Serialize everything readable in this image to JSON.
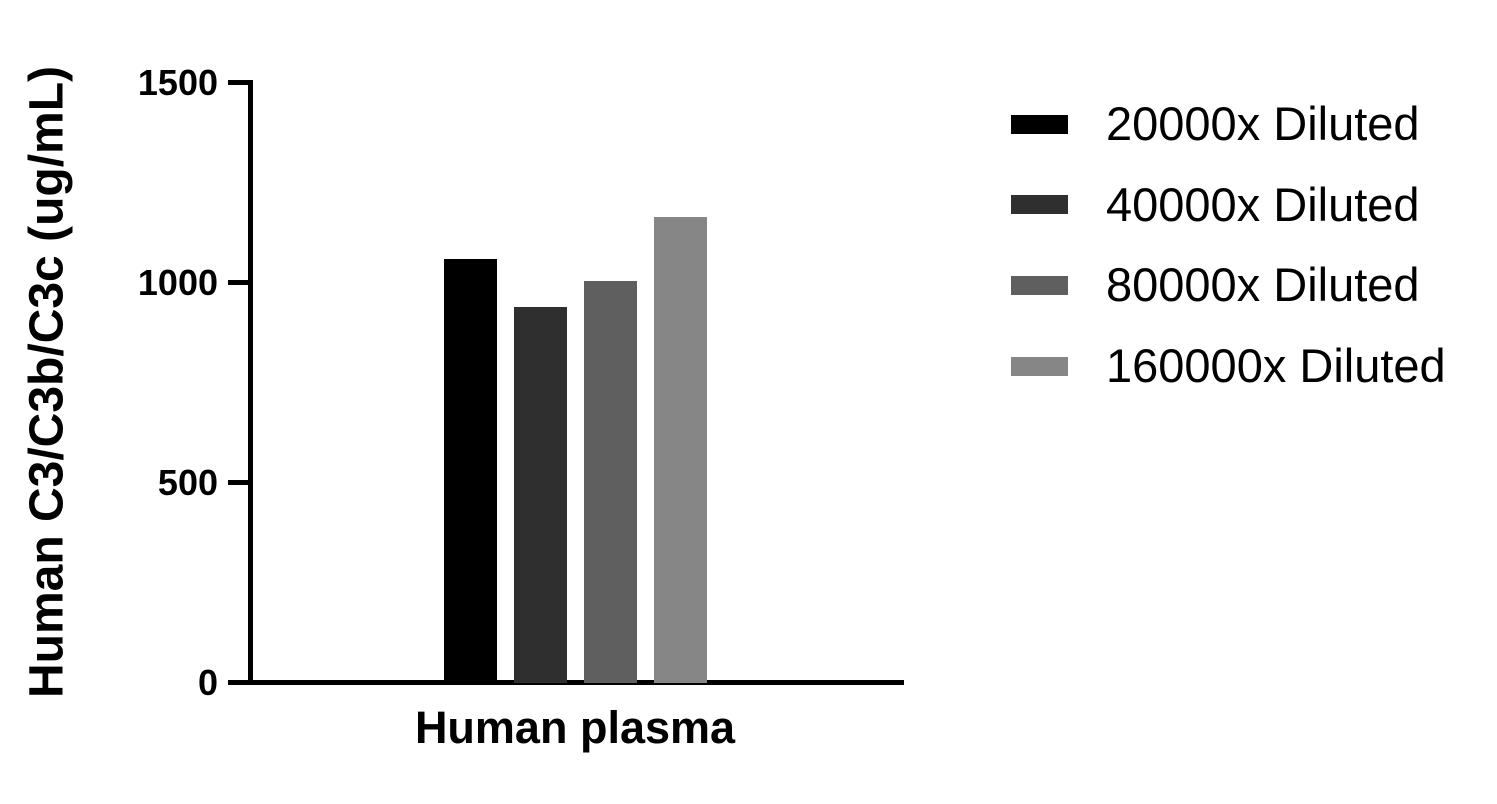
{
  "chart_data": {
    "type": "bar",
    "title": "",
    "categories": [
      "Human plasma"
    ],
    "series": [
      {
        "name": "20000x Diluted",
        "color": "#000000",
        "values": [
          1060
        ]
      },
      {
        "name": "40000x Diluted",
        "color": "#2f2f2f",
        "values": [
          940
        ]
      },
      {
        "name": "80000x Diluted",
        "color": "#5f5f5f",
        "values": [
          1005
        ]
      },
      {
        "name": "160000x Diluted",
        "color": "#868686",
        "values": [
          1165
        ]
      }
    ],
    "xlabel": "Human plasma",
    "ylabel": "Human C3/C3b/C3c (ug/mL)",
    "ylim": [
      0,
      1500
    ],
    "yticks": [
      0,
      500,
      1000,
      1500
    ],
    "ytick_labels": [
      "0",
      "500",
      "1000",
      "1500"
    ],
    "grid": false,
    "legend_position": "right",
    "axis_color": "#000000",
    "background_color": "#ffffff"
  }
}
